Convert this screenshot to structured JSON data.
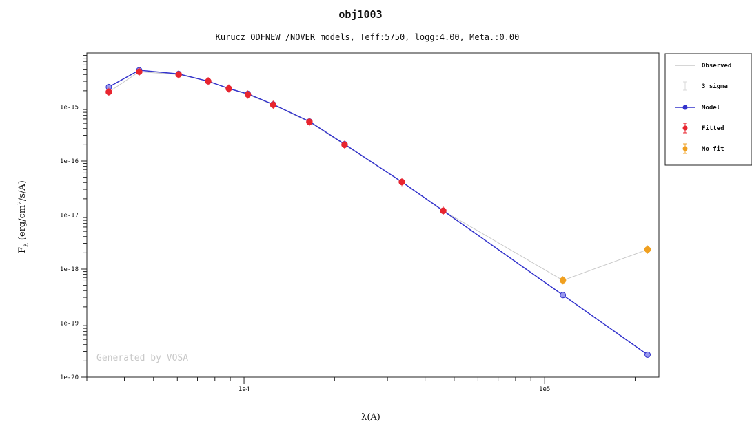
{
  "chart_data": {
    "type": "scatter",
    "title": "obj1003",
    "subtitle": "Kurucz ODFNEW /NOVER models, Teff:5750, logg:4.00, Meta.:0.00",
    "xlabel": "λ(A)",
    "ylabel_main": "F",
    "ylabel_sub": "λ",
    "ylabel_units_pre": "(erg/cm",
    "ylabel_units_sup": "2",
    "ylabel_units_post": "/s/A)",
    "x_scale": "log",
    "y_scale": "log",
    "xlim": [
      3000,
      240000
    ],
    "ylim": [
      1e-20,
      1e-14
    ],
    "x_tick_labels": [
      {
        "value": 10000,
        "label": "1e4"
      },
      {
        "value": 100000,
        "label": "1e5"
      }
    ],
    "y_tick_labels": [
      {
        "value": 1e-15,
        "label": "1e-15"
      },
      {
        "value": 1e-16,
        "label": "1e-16"
      },
      {
        "value": 1e-17,
        "label": "1e-17"
      },
      {
        "value": 1e-18,
        "label": "1e-18"
      },
      {
        "value": 1e-19,
        "label": "1e-19"
      },
      {
        "value": 1e-20,
        "label": "1e-20"
      }
    ],
    "watermark": "Generated by VOSA",
    "legend_position": "right, outside plot",
    "series": [
      {
        "name": "Observed",
        "kind": "line",
        "color": "#c8c8c8",
        "x": [
          3550,
          4480,
          6060,
          7600,
          8900,
          10300,
          12500,
          16500,
          21600,
          33500,
          46000,
          115000,
          220000
        ],
        "y": [
          1.9e-15,
          4.5e-15,
          4e-15,
          3e-15,
          2.2e-15,
          1.7e-15,
          1.1e-15,
          5.3e-16,
          2e-16,
          4.1e-17,
          1.2e-17,
          6.2e-19,
          2.3e-18
        ]
      },
      {
        "name": "3 sigma",
        "kind": "errorbar",
        "color": "#d8d8d8",
        "x": [],
        "y": []
      },
      {
        "name": "Model",
        "kind": "line+marker",
        "color": "#3333cc",
        "x": [
          3550,
          4480,
          6060,
          7600,
          8900,
          10300,
          12500,
          16500,
          21600,
          33500,
          46000,
          115000,
          220000
        ],
        "y": [
          2.35e-15,
          4.8e-15,
          4.1e-15,
          3e-15,
          2.2e-15,
          1.75e-15,
          1.12e-15,
          5.4e-16,
          2.05e-16,
          4.1e-17,
          1.2e-17,
          3.3e-19,
          2.6e-20
        ]
      },
      {
        "name": "Fitted",
        "kind": "errorbar",
        "color": "#e8252f",
        "x": [
          3550,
          4480,
          6060,
          7600,
          8900,
          10300,
          12500,
          16500,
          21600,
          33500,
          46000
        ],
        "y": [
          1.9e-15,
          4.5e-15,
          4e-15,
          3e-15,
          2.2e-15,
          1.7e-15,
          1.1e-15,
          5.3e-16,
          2e-16,
          4.1e-17,
          1.2e-17
        ]
      },
      {
        "name": "No fit",
        "kind": "errorbar",
        "color": "#f0a020",
        "x": [
          115000,
          220000
        ],
        "y": [
          6.2e-19,
          2.3e-18
        ]
      }
    ]
  },
  "legend": {
    "items": [
      {
        "label": "Observed",
        "key": "observed"
      },
      {
        "label": "3 sigma",
        "key": "sigma"
      },
      {
        "label": "Model",
        "key": "model"
      },
      {
        "label": "Fitted",
        "key": "fitted"
      },
      {
        "label": "No fit",
        "key": "nofit"
      }
    ]
  }
}
